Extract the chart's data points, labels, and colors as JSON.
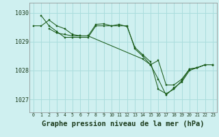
{
  "bg_color": "#cff0f0",
  "grid_color": "#aadddd",
  "line_color": "#1a5c1a",
  "marker_color": "#1a5c1a",
  "xlabel": "Graphe pression niveau de la mer (hPa)",
  "xlabel_fontsize": 7.5,
  "ylabel_ticks": [
    1027,
    1028,
    1029,
    1030
  ],
  "xlim": [
    -0.5,
    23.5
  ],
  "ylim": [
    1026.55,
    1030.35
  ],
  "series": [
    {
      "x": [
        0,
        1,
        2,
        3,
        4,
        5,
        6,
        7,
        8,
        9,
        10,
        11,
        12,
        13,
        14,
        15,
        16,
        17,
        18,
        19,
        20,
        21,
        22,
        23
      ],
      "y": [
        1029.55,
        1029.55,
        1029.75,
        1029.55,
        1029.45,
        1029.25,
        1029.2,
        1029.2,
        1029.6,
        1029.62,
        1029.55,
        1029.6,
        1029.52,
        1028.8,
        1028.55,
        1028.3,
        1027.35,
        1027.2,
        1027.35,
        1027.65,
        1028.05,
        1028.1,
        1028.2,
        1028.2
      ]
    },
    {
      "x": [
        1,
        2,
        3,
        4,
        5,
        6,
        7,
        8,
        9,
        10,
        11,
        12,
        13,
        14,
        15,
        16,
        17,
        18,
        19,
        20,
        21,
        22,
        23
      ],
      "y": [
        1029.9,
        1029.55,
        1029.35,
        1029.15,
        1029.15,
        1029.15,
        1029.15,
        1029.55,
        1029.55,
        1029.55,
        1029.55,
        1029.55,
        1028.75,
        1028.5,
        1028.2,
        1028.35,
        1027.5,
        1027.5,
        1027.7,
        1028.05,
        1028.1,
        1028.2,
        1028.2
      ]
    },
    {
      "x": [
        2,
        3,
        4,
        5,
        6,
        7,
        14,
        15,
        16,
        17,
        18,
        19,
        20,
        21,
        22,
        23
      ],
      "y": [
        1029.45,
        1029.3,
        1029.25,
        1029.2,
        1029.2,
        1029.2,
        1028.4,
        1028.2,
        1027.7,
        1027.15,
        1027.4,
        1027.6,
        1028.0,
        1028.1,
        1028.2,
        1028.2
      ]
    }
  ],
  "figsize": [
    3.2,
    2.0
  ],
  "dpi": 100
}
